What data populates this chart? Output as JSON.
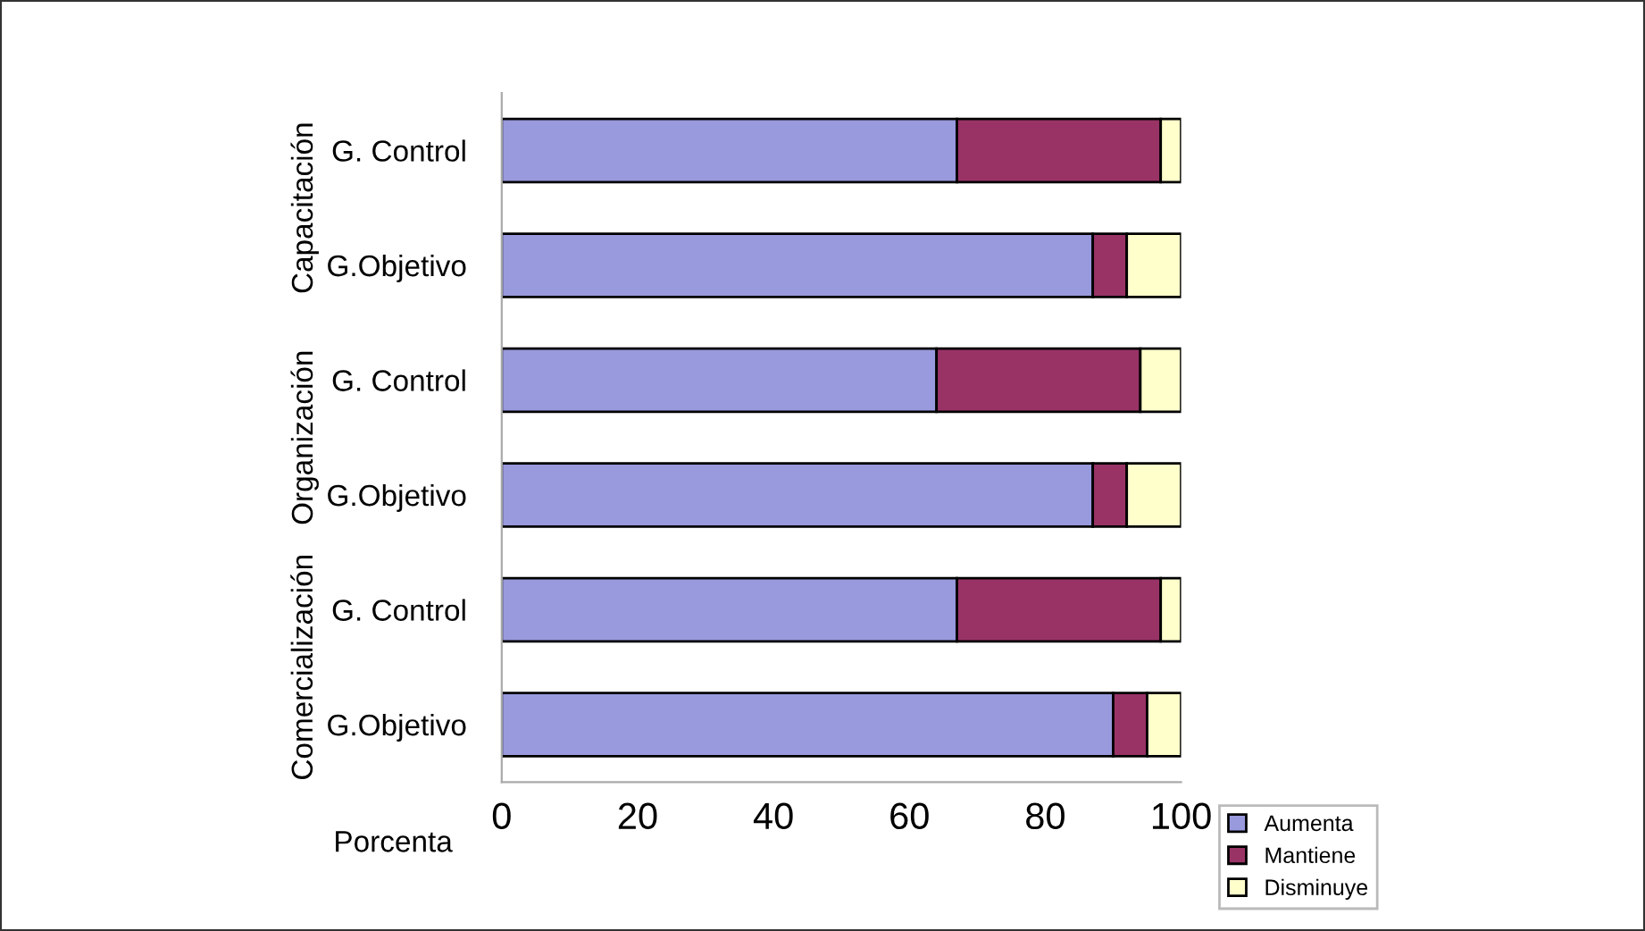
{
  "chart_data": {
    "type": "bar",
    "orientation": "horizontal",
    "stacked": true,
    "categories": [
      "G. Control",
      "G.Objetivo",
      "G. Control",
      "G.Objetivo",
      "G. Control",
      "G.Objetivo"
    ],
    "annotations": [
      "Capacitación",
      "Organización",
      "Comercialización"
    ],
    "series": [
      {
        "name": "Aumenta",
        "color": "#9999dd",
        "values": [
          67,
          87,
          64,
          87,
          67,
          90
        ]
      },
      {
        "name": "Mantiene",
        "color": "#993366",
        "values": [
          30,
          5,
          30,
          5,
          30,
          5
        ]
      },
      {
        "name": "Disminuye",
        "color": "#ffffcc",
        "values": [
          3,
          8,
          6,
          8,
          3,
          5
        ]
      }
    ],
    "xlabel": "Porcenta",
    "xlim": [
      0,
      100
    ],
    "xticks": [
      0,
      20,
      40,
      60,
      80,
      100
    ],
    "grid": false,
    "legend": "bottom right"
  }
}
